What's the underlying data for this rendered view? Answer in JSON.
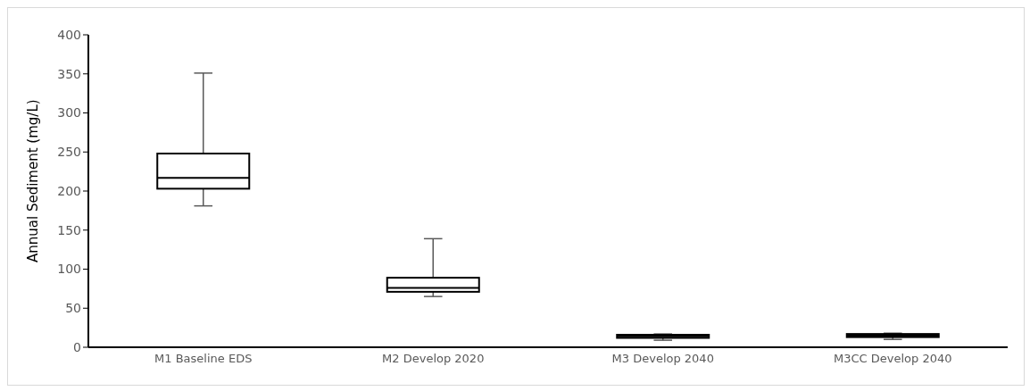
{
  "chart_data": {
    "type": "box",
    "ylabel": "Annual Sediment  (mg/L)",
    "categories": [
      "M1 Baseline EDS",
      "M2 Develop 2020",
      "M3 Develop 2040",
      "M3CC Develop 2040"
    ],
    "color": "#000000",
    "boxes": [
      {
        "low": 181,
        "q1": 203,
        "median": 217,
        "q3": 248,
        "high": 351
      },
      {
        "low": 65,
        "q1": 71,
        "median": 76,
        "q3": 89,
        "high": 139
      },
      {
        "low": 9,
        "q1": 12,
        "median": 14,
        "q3": 16,
        "high": 17
      },
      {
        "low": 10,
        "q1": 13,
        "median": 15,
        "q3": 17,
        "high": 18
      }
    ],
    "ylim": [
      0,
      400
    ],
    "yticks": [
      0,
      50,
      100,
      150,
      200,
      250,
      300,
      350,
      400
    ]
  }
}
